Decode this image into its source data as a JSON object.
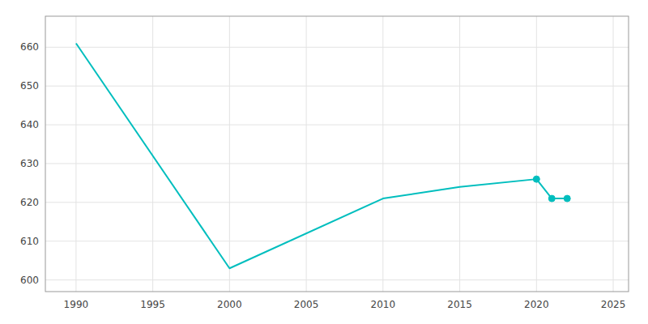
{
  "chart_data": {
    "type": "line",
    "x": [
      1990,
      2000,
      2010,
      2015,
      2020,
      2021,
      2022
    ],
    "series": [
      {
        "color": "#00BEBE",
        "values": [
          661,
          603,
          621,
          624,
          626,
          621,
          621
        ]
      },
      {
        "color": "#00BEBE",
        "values": [
          null,
          null,
          null,
          null,
          626,
          621,
          621
        ],
        "marker": "circle",
        "line_style": "none"
      }
    ],
    "xlim": [
      1988,
      2026
    ],
    "xticks": [
      1990,
      1995,
      2000,
      2005,
      2010,
      2015,
      2020,
      2025
    ],
    "ylim": [
      597,
      668
    ],
    "yticks": [
      600,
      610,
      620,
      630,
      640,
      650,
      660
    ],
    "grid": true
  }
}
